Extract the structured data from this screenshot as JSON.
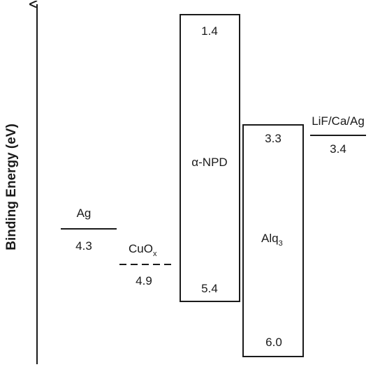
{
  "axis": {
    "label": "Binding Energy (eV)"
  },
  "materials": {
    "ag": {
      "name": "Ag",
      "level": "4.3"
    },
    "cuox": {
      "name": "CuO",
      "subscript": "x",
      "level": "4.9"
    },
    "npd": {
      "name": "α-NPD",
      "lumo": "1.4",
      "homo": "5.4"
    },
    "alq3": {
      "name": "Alq",
      "subscript": "3",
      "lumo": "3.3",
      "homo": "6.0"
    },
    "cathode": {
      "name": "LiF/Ca/Ag",
      "level": "3.4"
    }
  }
}
